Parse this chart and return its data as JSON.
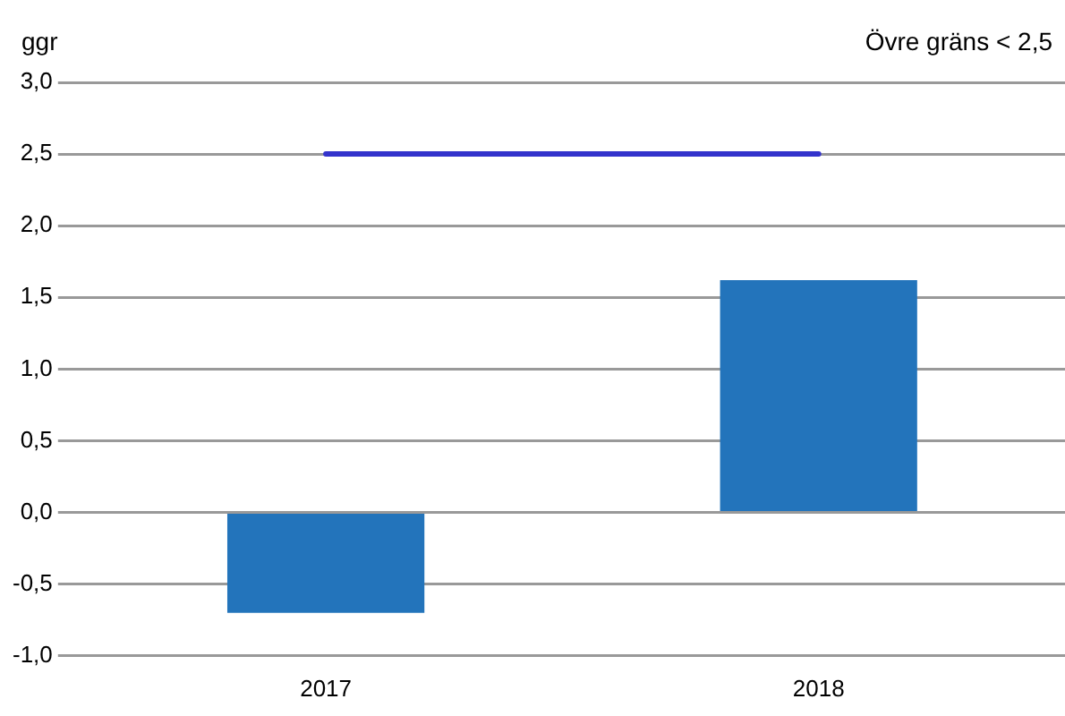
{
  "chart_data": {
    "type": "bar",
    "ylabel": "ggr",
    "annotations": [
      "Övre gräns < 2,5"
    ],
    "categories": [
      "2017",
      "2018"
    ],
    "series": [
      {
        "color": "#2374bb",
        "values": [
          -0.7,
          1.62
        ]
      },
      {
        "type": "line",
        "color": "#3333cc",
        "values": [
          2.5,
          2.5
        ],
        "marker": "none"
      }
    ],
    "ylim": [
      -1,
      3
    ],
    "yticks": [
      {
        "value": -1,
        "label": "-1,0"
      },
      {
        "value": -0.5,
        "label": "-0,5"
      },
      {
        "value": 0,
        "label": "0,0"
      },
      {
        "value": 0.5,
        "label": "0,5"
      },
      {
        "value": 1,
        "label": "1,0"
      },
      {
        "value": 1.5,
        "label": "1,5"
      },
      {
        "value": 2,
        "label": "2,0"
      },
      {
        "value": 2.5,
        "label": "2,5"
      },
      {
        "value": 3,
        "label": "3,0"
      }
    ],
    "grid": "y",
    "legend": false
  }
}
